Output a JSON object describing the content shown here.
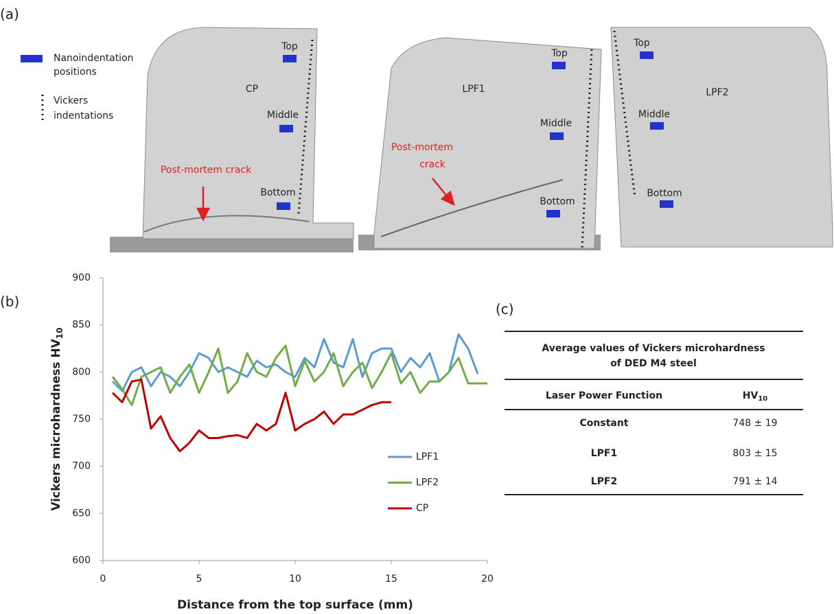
{
  "panel_a": {
    "label": "(a)",
    "legend": {
      "nanoindentation": [
        "Nanoindentation",
        "positions"
      ],
      "vickers": [
        "Vickers",
        "indentations"
      ]
    },
    "samples": [
      {
        "name": "CP",
        "positions": [
          "Top",
          "Middle",
          "Bottom"
        ],
        "crack": [
          "Post-mortem crack"
        ]
      },
      {
        "name": "LPF1",
        "positions": [
          "Top",
          "Middle",
          "Bottom"
        ],
        "crack": [
          "Post-mortem",
          "crack"
        ]
      },
      {
        "name": "LPF2",
        "positions": [
          "Top",
          "Middle",
          "Bottom"
        ]
      }
    ]
  },
  "panel_b_label": "(b)",
  "chart_data": {
    "type": "line",
    "xlabel": "Distance from the top surface (mm)",
    "ylabel": {
      "text": "Vickers microhardness HV",
      "sub": "10"
    },
    "xlim": [
      0,
      20
    ],
    "xticks": [
      0,
      5,
      10,
      15,
      20
    ],
    "ylim": [
      600,
      900
    ],
    "yticks": [
      600,
      650,
      700,
      750,
      800,
      850,
      900
    ],
    "grid": false,
    "legend": "lower-right",
    "series": [
      {
        "name": "LPF1",
        "color": "#5b9bd5",
        "x": [
          0.5,
          1,
          1.5,
          2,
          2.5,
          3,
          3.5,
          4,
          4.5,
          5,
          5.5,
          6,
          6.5,
          7,
          7.5,
          8,
          8.5,
          9,
          9.5,
          10,
          10.5,
          11,
          11.5,
          12,
          12.5,
          13,
          13.5,
          14,
          14.5,
          15,
          15.5,
          16,
          16.5,
          17,
          17.5,
          18,
          18.5,
          19,
          19.5
        ],
        "values": [
          790,
          780,
          800,
          805,
          785,
          800,
          795,
          785,
          800,
          820,
          815,
          800,
          805,
          800,
          795,
          812,
          805,
          808,
          800,
          795,
          815,
          805,
          835,
          810,
          805,
          835,
          795,
          820,
          825,
          825,
          800,
          815,
          805,
          820,
          790,
          800,
          840,
          825,
          798
        ]
      },
      {
        "name": "LPF2",
        "color": "#70ad47",
        "x": [
          0.5,
          1,
          1.5,
          2,
          2.5,
          3,
          3.5,
          4,
          4.5,
          5,
          5.5,
          6,
          6.5,
          7,
          7.5,
          8,
          8.5,
          9,
          9.5,
          10,
          10.5,
          11,
          11.5,
          12,
          12.5,
          13,
          13.5,
          14,
          14.5,
          15,
          15.5,
          16,
          16.5,
          17,
          17.5,
          18,
          18.5,
          19,
          19.5,
          20
        ],
        "values": [
          795,
          782,
          765,
          795,
          800,
          805,
          778,
          795,
          808,
          778,
          800,
          825,
          778,
          790,
          820,
          800,
          795,
          815,
          828,
          785,
          812,
          790,
          800,
          820,
          785,
          800,
          810,
          783,
          800,
          820,
          788,
          800,
          778,
          790,
          790,
          800,
          815,
          788,
          788,
          788
        ]
      },
      {
        "name": "CP",
        "color": "#c00000",
        "x": [
          0.5,
          1,
          1.5,
          2,
          2.5,
          3,
          3.5,
          4,
          4.5,
          5,
          5.5,
          6,
          6.5,
          7,
          7.5,
          8,
          8.5,
          9,
          9.5,
          10,
          10.5,
          11,
          11.5,
          12,
          12.5,
          13,
          13.5,
          14,
          14.5,
          15
        ],
        "values": [
          778,
          768,
          790,
          792,
          740,
          753,
          730,
          716,
          725,
          738,
          730,
          730,
          732,
          733,
          730,
          745,
          738,
          745,
          778,
          738,
          745,
          750,
          758,
          745,
          755,
          755,
          760,
          765,
          768,
          768
        ]
      }
    ]
  },
  "panel_c": {
    "label": "(c)",
    "title": [
      "Average values of Vickers microhardness",
      "of DED M4 steel"
    ],
    "header": {
      "function": "Laser Power Function",
      "hv": "HV",
      "hv_sub": "10"
    },
    "rows": [
      [
        "Constant",
        "748 ± 19"
      ],
      [
        "LPF1",
        "803 ± 15"
      ],
      [
        "LPF2",
        "791 ± 14"
      ]
    ]
  }
}
